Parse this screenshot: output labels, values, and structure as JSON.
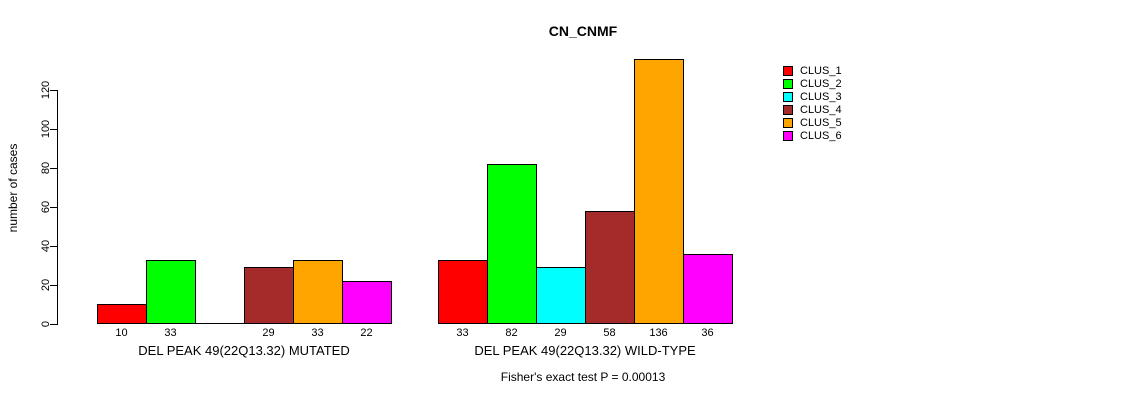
{
  "chart_data": {
    "type": "bar",
    "title": "CN_CNMF",
    "ylabel": "number of cases",
    "annotation": "Fisher's exact test P = 0.00013",
    "yticks": [
      0,
      20,
      40,
      60,
      80,
      100,
      120
    ],
    "ylim": [
      0,
      140
    ],
    "grid": false,
    "legend_position": "right",
    "clusters": [
      {
        "name": "CLUS_1",
        "color": "#FF0000"
      },
      {
        "name": "CLUS_2",
        "color": "#00FF00"
      },
      {
        "name": "CLUS_3",
        "color": "#00FFFF"
      },
      {
        "name": "CLUS_4",
        "color": "#A52A2A"
      },
      {
        "name": "CLUS_5",
        "color": "#FFA500"
      },
      {
        "name": "CLUS_6",
        "color": "#FF00FF"
      }
    ],
    "groups": [
      {
        "label": "DEL PEAK 49(22Q13.32) MUTATED",
        "values": [
          10,
          33,
          0,
          29,
          33,
          22
        ],
        "bar_labels": [
          "10",
          "33",
          "",
          "29",
          "33",
          "22"
        ]
      },
      {
        "label": "DEL PEAK 49(22Q13.32) WILD-TYPE",
        "values": [
          33,
          82,
          29,
          58,
          136,
          36
        ],
        "bar_labels": [
          "33",
          "82",
          "29",
          "58",
          "136",
          "36"
        ]
      }
    ]
  }
}
